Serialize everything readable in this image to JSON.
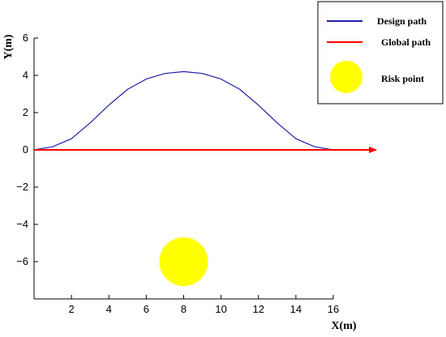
{
  "chart_data": {
    "type": "line",
    "xlabel": "X(m)",
    "ylabel": "Y(m)",
    "xlim": [
      0,
      16
    ],
    "ylim": [
      -8,
      6
    ],
    "x_ticks": [
      2,
      4,
      6,
      8,
      10,
      12,
      14,
      16
    ],
    "y_ticks": [
      6,
      4,
      2,
      0,
      -2,
      -4,
      -6
    ],
    "x_tick_labels": [
      "2",
      "4",
      "6",
      "8",
      "10",
      "12",
      "14",
      "16"
    ],
    "y_tick_labels": [
      "6",
      "4",
      "2",
      "0",
      "−2",
      "−4",
      "−6"
    ],
    "grid": false,
    "legend_position": "top-right",
    "series": [
      {
        "name": "Design path",
        "color": "#1f1fa8",
        "x": [
          0,
          1,
          2,
          3,
          4,
          5,
          6,
          7,
          8,
          9,
          10,
          11,
          12,
          13,
          14,
          15,
          16
        ],
        "y": [
          0,
          0.17,
          0.6,
          1.45,
          2.4,
          3.25,
          3.8,
          4.1,
          4.2,
          4.1,
          3.8,
          3.25,
          2.4,
          1.45,
          0.6,
          0.17,
          0
        ]
      },
      {
        "name": "Global path",
        "color": "#ff0000",
        "x": [
          0,
          18.3
        ],
        "y": [
          0,
          0
        ]
      }
    ],
    "markers": [
      {
        "name": "Risk point",
        "color": "#ffff00",
        "x": 8,
        "y": -6,
        "radius": 1.3
      }
    ]
  }
}
